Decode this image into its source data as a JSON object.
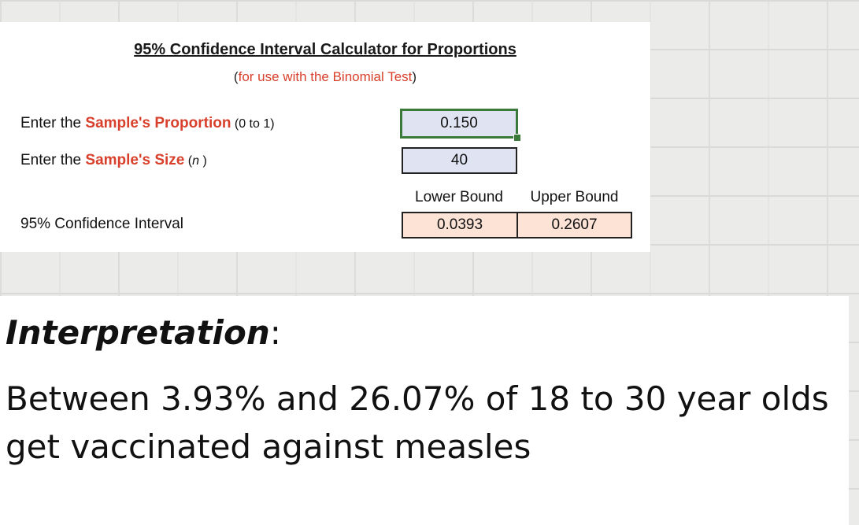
{
  "calculator": {
    "title": "95% Confidence Interval Calculator for Proportions",
    "subtitle_pre": "(",
    "subtitle_red": "for use with the Binomial Test",
    "subtitle_post": ")",
    "proportion_label": {
      "pre": "Enter the ",
      "red": "Sample's Proportion",
      "hint": " (0 to 1)"
    },
    "size_label": {
      "pre": "Enter the ",
      "red": "Sample's Size",
      "hint_pre": " (",
      "hint_var": "n",
      "hint_post": " )"
    },
    "proportion_value": "0.150",
    "size_value": "40",
    "lower_header": "Lower Bound",
    "upper_header": "Upper Bound",
    "ci_label": "95% Confidence Interval",
    "lower_value": "0.0393",
    "upper_value": "0.2607"
  },
  "interpretation": {
    "heading": "Interpretation",
    "colon": ":",
    "text": "Between 3.93% and 26.07% of 18 to 30 year olds get vaccinated against measles"
  }
}
